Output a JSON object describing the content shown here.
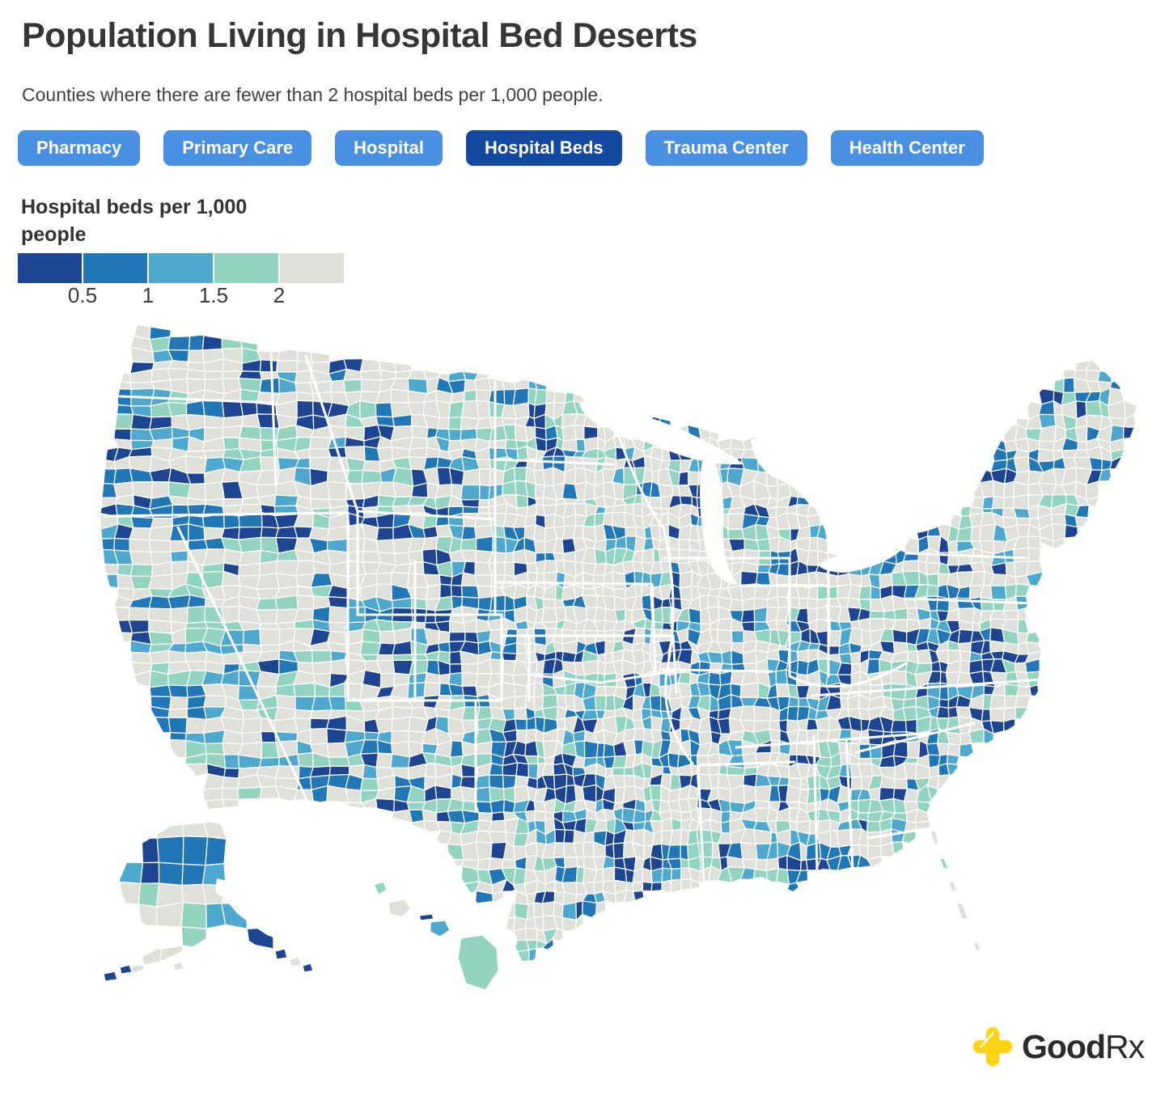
{
  "header": {
    "title": "Population Living in Hospital Bed Deserts",
    "subtitle": "Counties where there are fewer than 2 hospital beds per 1,000 people."
  },
  "filters": [
    {
      "label": "Pharmacy",
      "active": false
    },
    {
      "label": "Primary Care",
      "active": false
    },
    {
      "label": "Hospital",
      "active": false
    },
    {
      "label": "Hospital Beds",
      "active": true
    },
    {
      "label": "Trauma Center",
      "active": false
    },
    {
      "label": "Health Center",
      "active": false
    }
  ],
  "legend": {
    "title": "Hospital beds per 1,000 people",
    "tick_labels": [
      "0.5",
      "1",
      "1.5",
      "2"
    ]
  },
  "colors": {
    "filter_button": "#4a90e2",
    "filter_button_active": "#13499e",
    "filter_button_text": "#ffffff",
    "title_text": "#363636",
    "subtitle_text": "#414141",
    "brand_yellow": "#ffd417",
    "brand_text": "#2b2b2b"
  },
  "footer": {
    "brand": "GoodRx",
    "brand_bold_part": "Good",
    "brand_regular_part": "Rx"
  },
  "chart_data": {
    "type": "choropleth",
    "title": "Population Living in Hospital Bed Deserts",
    "subtitle": "Counties where there are fewer than 2 hospital beds per 1,000 people.",
    "geography": "United States counties (contiguous US, Alaska, Hawaii; Albers-style layout)",
    "metric": "Hospital beds per 1,000 people",
    "legend_title": "Hospital beds per 1,000 people",
    "breaks": [
      0.5,
      1,
      1.5,
      2
    ],
    "classes": [
      {
        "range": "0 to 0.5",
        "color": "#1e4591"
      },
      {
        "range": "0.5 to 1",
        "color": "#2277b6"
      },
      {
        "range": "1 to 1.5",
        "color": "#4fa8cd"
      },
      {
        "range": "1.5 to 2",
        "color": "#92d4bf"
      },
      {
        "range": "2 or more",
        "color": "#e0e0da"
      }
    ],
    "approx_share_of_counties": [
      0.13,
      0.11,
      0.12,
      0.15,
      0.49
    ],
    "county_border_color": "#ffffff",
    "state_border_color": "#ffffff",
    "background": "#ffffff",
    "legend_position": "top-left"
  }
}
